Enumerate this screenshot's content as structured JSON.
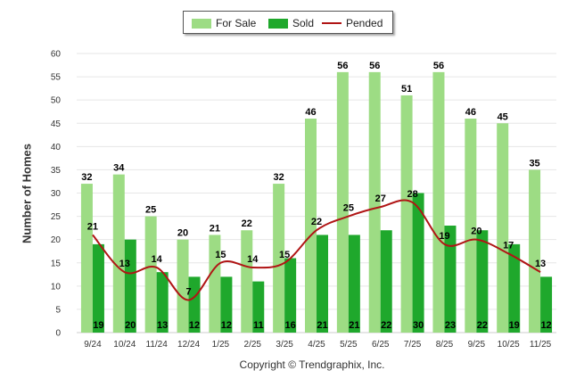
{
  "chart_data": {
    "type": "bar",
    "categories": [
      "9/24",
      "10/24",
      "11/24",
      "12/24",
      "1/25",
      "2/25",
      "3/25",
      "4/25",
      "5/25",
      "6/25",
      "7/25",
      "8/25",
      "9/25",
      "10/25",
      "11/25"
    ],
    "series": [
      {
        "name": "For Sale",
        "kind": "bar",
        "color": "#9ddc84",
        "values": [
          32,
          34,
          25,
          20,
          21,
          22,
          32,
          46,
          56,
          56,
          51,
          56,
          46,
          45,
          35
        ]
      },
      {
        "name": "Sold",
        "kind": "bar",
        "color": "#1fa82c",
        "values": [
          19,
          20,
          13,
          12,
          12,
          11,
          16,
          21,
          21,
          22,
          30,
          23,
          22,
          19,
          12
        ]
      },
      {
        "name": "Pended",
        "kind": "line",
        "color": "#b01515",
        "values": [
          21,
          13,
          14,
          7,
          15,
          14,
          15,
          22,
          25,
          27,
          28,
          19,
          20,
          17,
          13
        ]
      }
    ],
    "ylabel": "Number of Homes",
    "xlabel": "",
    "ylim": [
      0,
      60
    ],
    "yticks": [
      0,
      5,
      10,
      15,
      20,
      25,
      30,
      35,
      40,
      45,
      50,
      55,
      60
    ],
    "grid": true,
    "legend_position": "top-center"
  },
  "legend": [
    {
      "label": "For Sale",
      "color": "#9ddc84"
    },
    {
      "label": "Sold",
      "color": "#1fa82c"
    },
    {
      "label": "Pended",
      "color": "#b01515"
    }
  ],
  "axis": {
    "y_title": "Number of Homes"
  },
  "footer": {
    "copyright": "Copyright © Trendgraphix, Inc."
  }
}
